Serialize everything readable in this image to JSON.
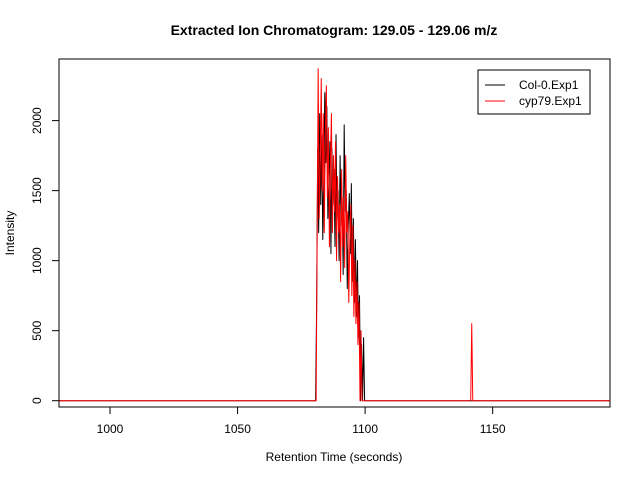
{
  "chart_data": {
    "type": "line",
    "title": "Extracted Ion Chromatogram: 129.05 - 129.06 m/z",
    "xlabel": "Retention Time (seconds)",
    "ylabel": "Intensity",
    "xlim": [
      980,
      1196
    ],
    "ylim": [
      -45,
      2440
    ],
    "x_ticks": [
      1000,
      1050,
      1100,
      1150
    ],
    "x_tick_labels": [
      "1000",
      "1050",
      "1100",
      "1150"
    ],
    "y_ticks": [
      0,
      500,
      1000,
      1500,
      2000
    ],
    "y_tick_labels": [
      "0",
      "500",
      "1000",
      "1500",
      "2000"
    ],
    "grid": false,
    "legend_position": "top-right",
    "series": [
      {
        "name": "Col-0.Exp1",
        "color": "#000000",
        "points": [
          [
            980,
            0
          ],
          [
            1080.6,
            0
          ],
          [
            1081.0,
            700
          ],
          [
            1081.4,
            1800
          ],
          [
            1081.8,
            1200
          ],
          [
            1082.2,
            2050
          ],
          [
            1082.6,
            1400
          ],
          [
            1083.0,
            1900
          ],
          [
            1083.4,
            1150
          ],
          [
            1083.8,
            1600
          ],
          [
            1084.2,
            2200
          ],
          [
            1084.6,
            1700
          ],
          [
            1085.0,
            2100
          ],
          [
            1085.4,
            1300
          ],
          [
            1085.8,
            1550
          ],
          [
            1086.2,
            1850
          ],
          [
            1086.6,
            1050
          ],
          [
            1087.0,
            1800
          ],
          [
            1087.4,
            1400
          ],
          [
            1087.8,
            1650
          ],
          [
            1088.2,
            1100
          ],
          [
            1088.6,
            1900
          ],
          [
            1089.0,
            1300
          ],
          [
            1089.4,
            1500
          ],
          [
            1089.8,
            1000
          ],
          [
            1090.2,
            1750
          ],
          [
            1090.6,
            1250
          ],
          [
            1091.0,
            1450
          ],
          [
            1091.4,
            900
          ],
          [
            1091.8,
            1970
          ],
          [
            1092.2,
            1350
          ],
          [
            1092.6,
            1500
          ],
          [
            1093.0,
            800
          ],
          [
            1093.4,
            1250
          ],
          [
            1093.8,
            1480
          ],
          [
            1094.2,
            1050
          ],
          [
            1094.6,
            1550
          ],
          [
            1095.0,
            850
          ],
          [
            1095.4,
            1300
          ],
          [
            1095.8,
            700
          ],
          [
            1096.2,
            1150
          ],
          [
            1096.6,
            600
          ],
          [
            1097.0,
            1000
          ],
          [
            1097.4,
            450
          ],
          [
            1097.8,
            750
          ],
          [
            1098.2,
            0
          ],
          [
            1098.6,
            400
          ],
          [
            1099.0,
            0
          ],
          [
            1099.4,
            450
          ],
          [
            1099.8,
            0
          ],
          [
            1196,
            0
          ]
        ]
      },
      {
        "name": "cyp79.Exp1",
        "color": "#ff0000",
        "points": [
          [
            980,
            0
          ],
          [
            1080.8,
            0
          ],
          [
            1081.2,
            1150
          ],
          [
            1081.6,
            2370
          ],
          [
            1082.0,
            1300
          ],
          [
            1082.4,
            1700
          ],
          [
            1082.8,
            2300
          ],
          [
            1083.2,
            1500
          ],
          [
            1083.6,
            2050
          ],
          [
            1084.0,
            1200
          ],
          [
            1084.4,
            1900
          ],
          [
            1084.8,
            2250
          ],
          [
            1085.2,
            1450
          ],
          [
            1085.6,
            1950
          ],
          [
            1086.0,
            1100
          ],
          [
            1086.4,
            1700
          ],
          [
            1086.8,
            2050
          ],
          [
            1087.2,
            1200
          ],
          [
            1087.6,
            1750
          ],
          [
            1088.0,
            1350
          ],
          [
            1088.4,
            1850
          ],
          [
            1088.8,
            1000
          ],
          [
            1089.2,
            1600
          ],
          [
            1089.6,
            1200
          ],
          [
            1090.0,
            1400
          ],
          [
            1090.4,
            850
          ],
          [
            1090.8,
            1650
          ],
          [
            1091.2,
            1100
          ],
          [
            1091.6,
            1450
          ],
          [
            1092.0,
            950
          ],
          [
            1092.4,
            1750
          ],
          [
            1092.8,
            1200
          ],
          [
            1093.2,
            1350
          ],
          [
            1093.6,
            700
          ],
          [
            1094.0,
            1150
          ],
          [
            1094.4,
            1400
          ],
          [
            1094.8,
            750
          ],
          [
            1095.2,
            1250
          ],
          [
            1095.6,
            600
          ],
          [
            1096.0,
            1000
          ],
          [
            1096.4,
            550
          ],
          [
            1096.8,
            850
          ],
          [
            1097.2,
            400
          ],
          [
            1097.6,
            700
          ],
          [
            1098.0,
            0
          ],
          [
            1098.4,
            500
          ],
          [
            1098.8,
            0
          ],
          [
            1141.4,
            0
          ],
          [
            1141.8,
            550
          ],
          [
            1142.2,
            0
          ],
          [
            1196,
            0
          ]
        ]
      }
    ]
  }
}
